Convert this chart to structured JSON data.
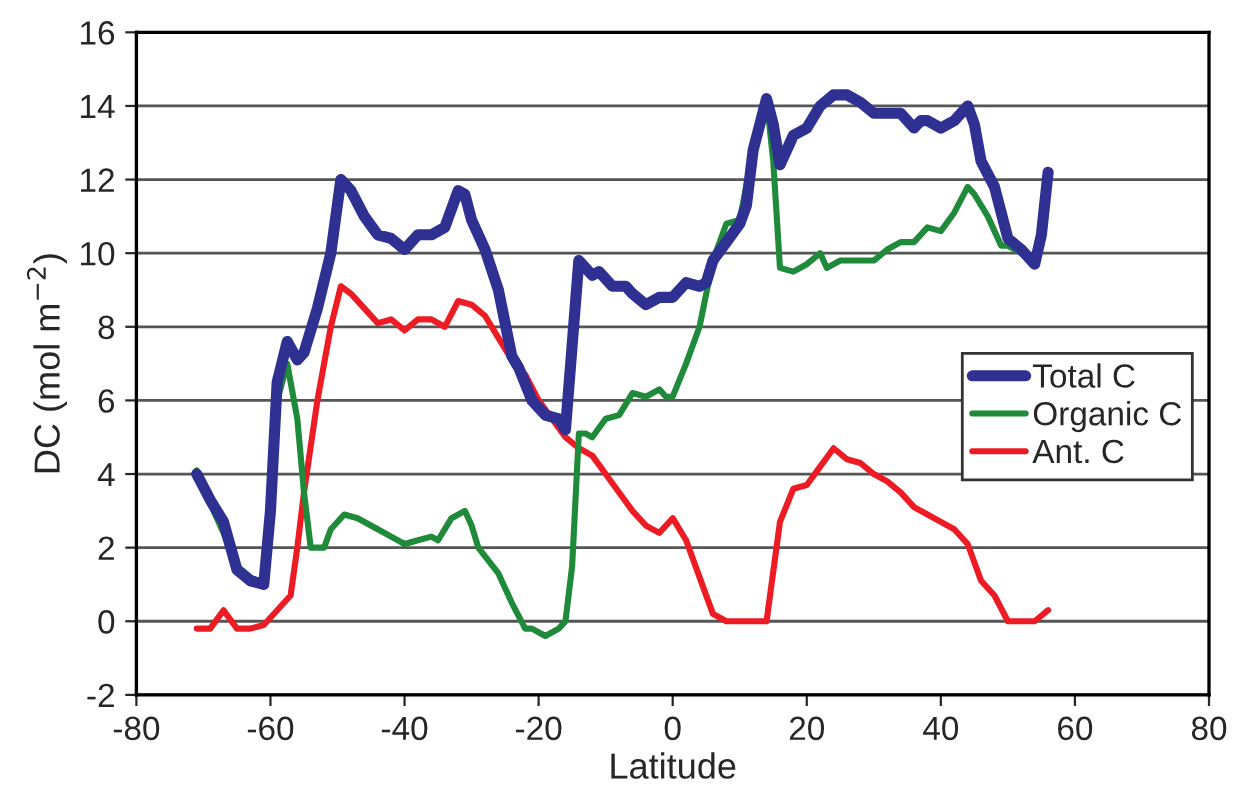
{
  "chart_data": {
    "type": "line",
    "xlabel": "Latitude",
    "ylabel": "DC (mol m$^{−2}$)",
    "xlim": [
      -80,
      80
    ],
    "xticks": [
      -80,
      -60,
      -40,
      -20,
      0,
      20,
      40,
      60,
      80
    ],
    "ylim": [
      -2,
      16
    ],
    "yticks": [
      -2,
      0,
      2,
      4,
      6,
      8,
      10,
      12,
      14,
      16
    ],
    "grid": "y",
    "legend": "right",
    "marker": "none",
    "line_style": "solid",
    "series": [
      {
        "name": "Total C",
        "color": "#2e3192",
        "x": [
          -71,
          -69,
          -67,
          -65,
          -63,
          -61,
          -60,
          -59,
          -57.5,
          -56,
          -55,
          -53,
          -51,
          -49.5,
          -48,
          -46,
          -44,
          -42,
          -40,
          -38,
          -36,
          -34,
          -32,
          -31,
          -30,
          -28,
          -26,
          -24,
          -23,
          -21,
          -19,
          -17,
          -16,
          -15,
          -14,
          -12,
          -11,
          -9,
          -7,
          -6,
          -4,
          -2,
          0,
          2,
          4,
          5,
          6,
          8,
          10,
          11,
          12,
          14,
          15,
          16,
          17,
          18,
          20,
          22,
          24,
          26,
          28,
          30,
          32,
          34,
          36,
          37,
          38,
          40,
          42,
          44,
          45,
          46,
          48,
          50,
          52,
          54,
          55,
          56
        ],
        "values": [
          4.0,
          3.3,
          2.7,
          1.4,
          1.1,
          1.0,
          3,
          6.5,
          7.6,
          7.1,
          7.3,
          8.5,
          10,
          12.0,
          11.7,
          11,
          10.5,
          10.4,
          10.1,
          10.5,
          10.5,
          10.7,
          11.7,
          11.6,
          10.9,
          10.1,
          9,
          7.2,
          6.9,
          6,
          5.6,
          5.5,
          5.2,
          7.5,
          9.8,
          9.4,
          9.5,
          9.1,
          9.1,
          8.9,
          8.6,
          8.8,
          8.8,
          9.2,
          9.1,
          9.2,
          9.8,
          10.3,
          10.8,
          11.3,
          12.8,
          14.2,
          13.5,
          12.4,
          12.8,
          13.2,
          13.4,
          14,
          14.3,
          14.3,
          14.1,
          13.8,
          13.8,
          13.8,
          13.4,
          13.6,
          13.6,
          13.4,
          13.6,
          14,
          13.5,
          12.5,
          11.8,
          10.4,
          10.1,
          9.7,
          10.5,
          12.2
        ]
      },
      {
        "name": "Organic C",
        "color": "#1e8a3a",
        "x": [
          -71,
          -69,
          -67,
          -65,
          -63,
          -61,
          -60,
          -59,
          -57.5,
          -56,
          -55,
          -54,
          -52,
          -51,
          -49,
          -47,
          -44,
          -42,
          -40,
          -38,
          -36,
          -35,
          -33,
          -31,
          -30,
          -29,
          -26,
          -24,
          -22,
          -21,
          -19,
          -17,
          -16,
          -15,
          -14,
          -13,
          -12,
          -10,
          -8,
          -6,
          -4,
          -2,
          -1,
          0,
          2,
          4,
          6,
          8,
          10,
          12,
          14,
          15,
          16,
          18,
          20,
          22,
          23,
          25,
          27,
          30,
          32,
          34,
          36,
          38,
          40,
          42,
          44,
          45,
          47,
          49,
          50,
          52,
          54,
          56
        ],
        "values": [
          4.1,
          3.2,
          2.4,
          1.5,
          1.2,
          1.0,
          3.5,
          6.0,
          7.0,
          5.5,
          3.5,
          2.0,
          2.0,
          2.5,
          2.9,
          2.8,
          2.5,
          2.3,
          2.1,
          2.2,
          2.3,
          2.2,
          2.8,
          3.0,
          2.6,
          2,
          1.3,
          0.5,
          -0.2,
          -0.2,
          -0.4,
          -0.2,
          0,
          1.5,
          5.1,
          5.1,
          5.0,
          5.5,
          5.6,
          6.2,
          6.1,
          6.3,
          6.1,
          6.1,
          7,
          8,
          9.8,
          10.8,
          10.9,
          12.8,
          14.2,
          12.5,
          9.6,
          9.5,
          9.7,
          10,
          9.6,
          9.8,
          9.8,
          9.8,
          10.1,
          10.3,
          10.3,
          10.7,
          10.6,
          11.1,
          11.8,
          11.6,
          11,
          10.2,
          10.2,
          10.0,
          9.7,
          11.8
        ]
      },
      {
        "name": "Ant. C",
        "color": "#ed1c24",
        "x": [
          -71,
          -69,
          -67,
          -65,
          -63,
          -61,
          -59,
          -57,
          -56,
          -55,
          -53,
          -51,
          -49.5,
          -48,
          -46,
          -44,
          -42,
          -40,
          -38,
          -36,
          -34,
          -32,
          -30,
          -28,
          -26,
          -24,
          -22,
          -20,
          -18,
          -16,
          -14,
          -12,
          -10,
          -8,
          -6,
          -4,
          -2,
          0,
          2,
          4,
          6,
          8,
          10,
          12,
          14,
          16,
          18,
          20,
          22,
          24,
          26,
          28,
          30,
          32,
          34,
          36,
          38,
          40,
          42,
          44,
          46,
          48,
          50,
          52,
          54,
          56
        ],
        "values": [
          -0.2,
          -0.2,
          0.3,
          -0.2,
          -0.2,
          -0.1,
          0.3,
          0.7,
          2,
          3.5,
          6,
          8,
          9.1,
          8.9,
          8.5,
          8.1,
          8.2,
          7.9,
          8.2,
          8.2,
          8.0,
          8.7,
          8.6,
          8.3,
          7.7,
          7.1,
          6.7,
          6.0,
          5.5,
          5.0,
          4.7,
          4.5,
          4.0,
          3.5,
          3.0,
          2.6,
          2.4,
          2.8,
          2.2,
          1.2,
          0.2,
          0,
          0,
          0,
          0,
          2.7,
          3.6,
          3.7,
          4.2,
          4.7,
          4.4,
          4.3,
          4.0,
          3.8,
          3.5,
          3.1,
          2.9,
          2.7,
          2.5,
          2.1,
          1.1,
          0.7,
          0.0,
          0,
          0,
          0.3
        ]
      }
    ]
  }
}
